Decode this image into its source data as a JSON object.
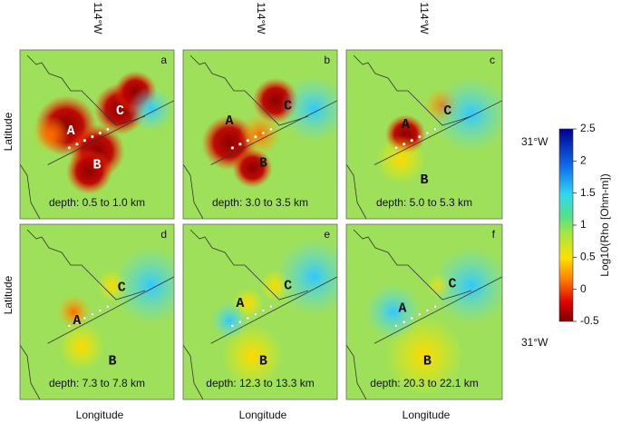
{
  "figure": {
    "top_labels": [
      "114°W",
      "114°W",
      "114°W"
    ],
    "y_label": "Latitude",
    "x_label": "Longitude",
    "right_labels": [
      "31°W",
      "31°W"
    ],
    "panels": [
      {
        "letter": "a",
        "depth": "depth: 0.5 to 1.0 km",
        "labels": [
          "A",
          "B",
          "C"
        ]
      },
      {
        "letter": "b",
        "depth": "depth: 3.0 to 3.5 km",
        "labels": [
          "A",
          "B",
          "C"
        ]
      },
      {
        "letter": "c",
        "depth": "depth: 5.0 to 5.3 km",
        "labels": [
          "A",
          "B",
          "C"
        ]
      },
      {
        "letter": "d",
        "depth": "depth: 7.3 to 7.8 km",
        "labels": [
          "A",
          "B",
          "C"
        ]
      },
      {
        "letter": "e",
        "depth": "depth: 12.3 to 13.3 km",
        "labels": [
          "A",
          "B",
          "C"
        ]
      },
      {
        "letter": "f",
        "depth": "depth: 20.3 to 22.1 km",
        "labels": [
          "A",
          "B",
          "C"
        ]
      }
    ],
    "colorbar": {
      "title": "Log10(Rho [Ohm-m])",
      "lim": [
        -0.5,
        2.5
      ],
      "ticks": [
        -0.5,
        0,
        0.5,
        1,
        1.5,
        2,
        2.5
      ]
    }
  }
}
